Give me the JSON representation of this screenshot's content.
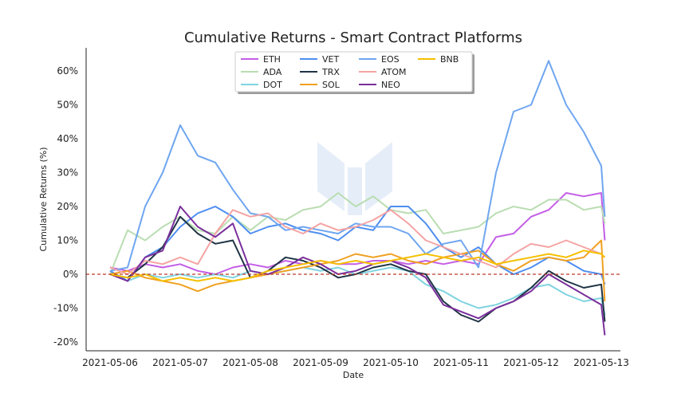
{
  "chart_data": {
    "type": "line",
    "title": "Cumulative Returns - Smart Contract Platforms",
    "xlabel": "Date",
    "ylabel": "Cumulative Returns (%)",
    "x_tick_labels": [
      "2021-05-06",
      "2021-05-07",
      "2021-05-08",
      "2021-05-09",
      "2021-05-10",
      "2021-05-11",
      "2021-05-12",
      "2021-05-13"
    ],
    "y_tick_labels": [
      "-20%",
      "-10%",
      "0%",
      "10%",
      "20%",
      "30%",
      "40%",
      "50%",
      "60%"
    ],
    "y_ticks": [
      -20,
      -10,
      0,
      10,
      20,
      30,
      40,
      50,
      60
    ],
    "xlim": [
      0,
      7.05
    ],
    "ylim": [
      -22.5,
      67
    ],
    "grid": false,
    "legend_position": "top-center",
    "reference_line": {
      "y": 0,
      "color": "#c0392b",
      "style": "dashed"
    },
    "watermark": "MESSARI",
    "series": [
      {
        "name": "ETH",
        "color": "#c45ee6",
        "points": [
          [
            0,
            2
          ],
          [
            0.25,
            1
          ],
          [
            0.5,
            3
          ],
          [
            0.75,
            2
          ],
          [
            1,
            3
          ],
          [
            1.25,
            1
          ],
          [
            1.5,
            0
          ],
          [
            1.75,
            2
          ],
          [
            2,
            3
          ],
          [
            2.25,
            2
          ],
          [
            2.5,
            4
          ],
          [
            2.75,
            3
          ],
          [
            3,
            4
          ],
          [
            3.25,
            3
          ],
          [
            3.5,
            3
          ],
          [
            3.75,
            4
          ],
          [
            4,
            4
          ],
          [
            4.25,
            3
          ],
          [
            4.5,
            4
          ],
          [
            4.75,
            3
          ],
          [
            5,
            4
          ],
          [
            5.25,
            3
          ],
          [
            5.5,
            11
          ],
          [
            5.75,
            12
          ],
          [
            6,
            17
          ],
          [
            6.25,
            19
          ],
          [
            6.5,
            24
          ],
          [
            6.75,
            23
          ],
          [
            7,
            24
          ],
          [
            7.05,
            10
          ]
        ]
      },
      {
        "name": "ADA",
        "color": "#b9ddb1",
        "points": [
          [
            0,
            0
          ],
          [
            0.25,
            13
          ],
          [
            0.5,
            10
          ],
          [
            0.75,
            14
          ],
          [
            1,
            17
          ],
          [
            1.25,
            13
          ],
          [
            1.5,
            12
          ],
          [
            1.75,
            17
          ],
          [
            2,
            13
          ],
          [
            2.25,
            17
          ],
          [
            2.5,
            16
          ],
          [
            2.75,
            19
          ],
          [
            3,
            20
          ],
          [
            3.25,
            24
          ],
          [
            3.5,
            20
          ],
          [
            3.75,
            23
          ],
          [
            4,
            19
          ],
          [
            4.25,
            18
          ],
          [
            4.5,
            19
          ],
          [
            4.75,
            12
          ],
          [
            5,
            13
          ],
          [
            5.25,
            14
          ],
          [
            5.5,
            18
          ],
          [
            5.75,
            20
          ],
          [
            6,
            19
          ],
          [
            6.25,
            22
          ],
          [
            6.5,
            22
          ],
          [
            6.75,
            19
          ],
          [
            7,
            20
          ],
          [
            7.05,
            15
          ]
        ]
      },
      {
        "name": "DOT",
        "color": "#7fd3e0",
        "points": [
          [
            0,
            1
          ],
          [
            0.25,
            -2
          ],
          [
            0.5,
            0
          ],
          [
            0.75,
            -1
          ],
          [
            1,
            0
          ],
          [
            1.25,
            -1
          ],
          [
            1.5,
            0
          ],
          [
            1.75,
            -1
          ],
          [
            2,
            1
          ],
          [
            2.25,
            0
          ],
          [
            2.5,
            1
          ],
          [
            2.75,
            2
          ],
          [
            3,
            1
          ],
          [
            3.25,
            2
          ],
          [
            3.5,
            0
          ],
          [
            3.75,
            1
          ],
          [
            4,
            2
          ],
          [
            4.25,
            1
          ],
          [
            4.5,
            -3
          ],
          [
            4.75,
            -5
          ],
          [
            5,
            -8
          ],
          [
            5.25,
            -10
          ],
          [
            5.5,
            -9
          ],
          [
            5.75,
            -7
          ],
          [
            6,
            -4
          ],
          [
            6.25,
            -3
          ],
          [
            6.5,
            -6
          ],
          [
            6.75,
            -8
          ],
          [
            7,
            -7
          ],
          [
            7.05,
            -12
          ]
        ]
      },
      {
        "name": "VET",
        "color": "#4d8ef0",
        "points": [
          [
            0,
            1
          ],
          [
            0.25,
            -2
          ],
          [
            0.5,
            5
          ],
          [
            0.75,
            8
          ],
          [
            1,
            14
          ],
          [
            1.25,
            18
          ],
          [
            1.5,
            20
          ],
          [
            1.75,
            17
          ],
          [
            2,
            12
          ],
          [
            2.25,
            14
          ],
          [
            2.5,
            15
          ],
          [
            2.75,
            13
          ],
          [
            3,
            12
          ],
          [
            3.25,
            10
          ],
          [
            3.5,
            14
          ],
          [
            3.75,
            13
          ],
          [
            4,
            20
          ],
          [
            4.25,
            20
          ],
          [
            4.5,
            15
          ],
          [
            4.75,
            8
          ],
          [
            5,
            5
          ],
          [
            5.25,
            8
          ],
          [
            5.5,
            3
          ],
          [
            5.75,
            0
          ],
          [
            6,
            2
          ],
          [
            6.25,
            5
          ],
          [
            6.5,
            4
          ],
          [
            6.75,
            1
          ],
          [
            7,
            0
          ],
          [
            7.05,
            -3
          ]
        ]
      },
      {
        "name": "TRX",
        "color": "#1f3344",
        "points": [
          [
            0,
            0
          ],
          [
            0.25,
            -1
          ],
          [
            0.5,
            3
          ],
          [
            0.75,
            8
          ],
          [
            1,
            17
          ],
          [
            1.25,
            12
          ],
          [
            1.5,
            9
          ],
          [
            1.75,
            10
          ],
          [
            2,
            -1
          ],
          [
            2.25,
            1
          ],
          [
            2.5,
            5
          ],
          [
            2.75,
            4
          ],
          [
            3,
            2
          ],
          [
            3.25,
            -1
          ],
          [
            3.5,
            0
          ],
          [
            3.75,
            2
          ],
          [
            4,
            3
          ],
          [
            4.25,
            1
          ],
          [
            4.5,
            0
          ],
          [
            4.75,
            -8
          ],
          [
            5,
            -12
          ],
          [
            5.25,
            -14
          ],
          [
            5.5,
            -10
          ],
          [
            5.75,
            -8
          ],
          [
            6,
            -4
          ],
          [
            6.25,
            1
          ],
          [
            6.5,
            -2
          ],
          [
            6.75,
            -4
          ],
          [
            7,
            -3
          ],
          [
            7.05,
            -14
          ]
        ]
      },
      {
        "name": "SOL",
        "color": "#f0a020",
        "points": [
          [
            0,
            0
          ],
          [
            0.25,
            1
          ],
          [
            0.5,
            -1
          ],
          [
            0.75,
            -2
          ],
          [
            1,
            -3
          ],
          [
            1.25,
            -5
          ],
          [
            1.5,
            -3
          ],
          [
            1.75,
            -2
          ],
          [
            2,
            -1
          ],
          [
            2.25,
            0
          ],
          [
            2.5,
            1
          ],
          [
            2.75,
            2
          ],
          [
            3,
            3
          ],
          [
            3.25,
            4
          ],
          [
            3.5,
            6
          ],
          [
            3.75,
            5
          ],
          [
            4,
            6
          ],
          [
            4.25,
            4
          ],
          [
            4.5,
            3
          ],
          [
            4.75,
            5
          ],
          [
            5,
            6
          ],
          [
            5.25,
            7
          ],
          [
            5.5,
            3
          ],
          [
            5.75,
            1
          ],
          [
            6,
            4
          ],
          [
            6.25,
            5
          ],
          [
            6.5,
            4
          ],
          [
            6.75,
            5
          ],
          [
            7,
            10
          ],
          [
            7.05,
            -8
          ]
        ]
      },
      {
        "name": "EOS",
        "color": "#6fa6f0",
        "points": [
          [
            0,
            1
          ],
          [
            0.25,
            2
          ],
          [
            0.5,
            20
          ],
          [
            0.75,
            30
          ],
          [
            1,
            44
          ],
          [
            1.25,
            35
          ],
          [
            1.5,
            33
          ],
          [
            1.75,
            25
          ],
          [
            2,
            18
          ],
          [
            2.25,
            17
          ],
          [
            2.5,
            13
          ],
          [
            2.75,
            14
          ],
          [
            3,
            13
          ],
          [
            3.25,
            12
          ],
          [
            3.5,
            15
          ],
          [
            3.75,
            14
          ],
          [
            4,
            14
          ],
          [
            4.25,
            12
          ],
          [
            4.5,
            6
          ],
          [
            4.75,
            9
          ],
          [
            5,
            10
          ],
          [
            5.25,
            2
          ],
          [
            5.5,
            30
          ],
          [
            5.75,
            48
          ],
          [
            6,
            50
          ],
          [
            6.25,
            63
          ],
          [
            6.5,
            50
          ],
          [
            6.75,
            42
          ],
          [
            7,
            32
          ],
          [
            7.05,
            17
          ]
        ]
      },
      {
        "name": "ATOM",
        "color": "#f5a3a3",
        "points": [
          [
            0,
            2
          ],
          [
            0.25,
            0
          ],
          [
            0.5,
            4
          ],
          [
            0.75,
            3
          ],
          [
            1,
            5
          ],
          [
            1.25,
            3
          ],
          [
            1.5,
            12
          ],
          [
            1.75,
            19
          ],
          [
            2,
            17
          ],
          [
            2.25,
            18
          ],
          [
            2.5,
            14
          ],
          [
            2.75,
            12
          ],
          [
            3,
            15
          ],
          [
            3.25,
            13
          ],
          [
            3.5,
            14
          ],
          [
            3.75,
            16
          ],
          [
            4,
            19
          ],
          [
            4.25,
            15
          ],
          [
            4.5,
            10
          ],
          [
            4.75,
            8
          ],
          [
            5,
            6
          ],
          [
            5.25,
            4
          ],
          [
            5.5,
            2
          ],
          [
            5.75,
            6
          ],
          [
            6,
            9
          ],
          [
            6.25,
            8
          ],
          [
            6.5,
            10
          ],
          [
            6.75,
            8
          ],
          [
            7,
            6
          ],
          [
            7.05,
            5
          ]
        ]
      },
      {
        "name": "NEO",
        "color": "#7a2f9c",
        "points": [
          [
            0,
            0
          ],
          [
            0.25,
            -2
          ],
          [
            0.5,
            5
          ],
          [
            0.75,
            7
          ],
          [
            1,
            20
          ],
          [
            1.25,
            14
          ],
          [
            1.5,
            11
          ],
          [
            1.75,
            15
          ],
          [
            2,
            1
          ],
          [
            2.25,
            0
          ],
          [
            2.5,
            2
          ],
          [
            2.75,
            5
          ],
          [
            3,
            3
          ],
          [
            3.25,
            0
          ],
          [
            3.5,
            1
          ],
          [
            3.75,
            3
          ],
          [
            4,
            4
          ],
          [
            4.25,
            2
          ],
          [
            4.5,
            -1
          ],
          [
            4.75,
            -9
          ],
          [
            5,
            -11
          ],
          [
            5.25,
            -13
          ],
          [
            5.5,
            -10
          ],
          [
            5.75,
            -8
          ],
          [
            6,
            -5
          ],
          [
            6.25,
            0
          ],
          [
            6.5,
            -3
          ],
          [
            6.75,
            -6
          ],
          [
            7,
            -9
          ],
          [
            7.05,
            -18
          ]
        ]
      },
      {
        "name": "BNB",
        "color": "#f5c000",
        "points": [
          [
            0,
            0
          ],
          [
            0.25,
            -1
          ],
          [
            0.5,
            0
          ],
          [
            0.75,
            -2
          ],
          [
            1,
            -1
          ],
          [
            1.25,
            -2
          ],
          [
            1.5,
            -1
          ],
          [
            1.75,
            -2
          ],
          [
            2,
            -1
          ],
          [
            2.25,
            1
          ],
          [
            2.5,
            2
          ],
          [
            2.75,
            3
          ],
          [
            3,
            4
          ],
          [
            3.25,
            3
          ],
          [
            3.5,
            4
          ],
          [
            3.75,
            3
          ],
          [
            4,
            4
          ],
          [
            4.25,
            5
          ],
          [
            4.5,
            6
          ],
          [
            4.75,
            5
          ],
          [
            5,
            4
          ],
          [
            5.25,
            5
          ],
          [
            5.5,
            3
          ],
          [
            5.75,
            4
          ],
          [
            6,
            5
          ],
          [
            6.25,
            6
          ],
          [
            6.5,
            5
          ],
          [
            6.75,
            7
          ],
          [
            7,
            6
          ],
          [
            7.05,
            5
          ]
        ]
      }
    ]
  }
}
